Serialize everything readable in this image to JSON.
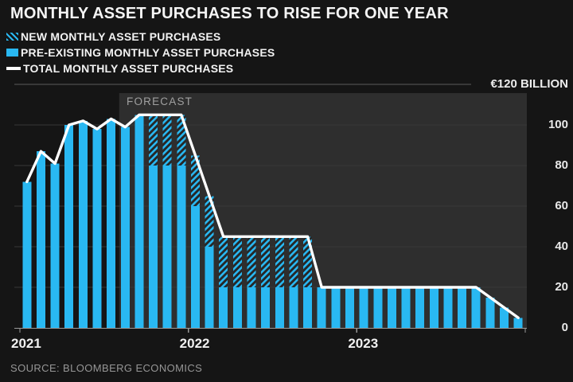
{
  "header": {
    "title": "MONTHLY ASSET PURCHASES TO RISE FOR ONE YEAR",
    "unit_label": "€120 BILLION"
  },
  "legend": [
    {
      "label": "NEW MONTHLY ASSET PURCHASES",
      "swatch": "hatched-cyan"
    },
    {
      "label": "PRE-EXISTING MONTHLY ASSET PURCHASES",
      "swatch": "solid-cyan"
    },
    {
      "label": "TOTAL MONTHLY ASSET PURCHASES",
      "swatch": "white-line"
    }
  ],
  "forecast_label": "FORECAST",
  "source": "SOURCE: BLOOMBERG ECONOMICS",
  "colors": {
    "bar_cyan": "#29b8f2",
    "hatch_background": "#262626",
    "total_line_white": "#ffffff",
    "forecast_region": "#2e2e2e",
    "gridline": "#383838",
    "top_gridline": "#5a5a5a",
    "axis": "#999999",
    "page_background": "#151515"
  },
  "chart_data": {
    "type": "bar",
    "stacked": true,
    "unit": "EUR billion per month",
    "title": "MONTHLY ASSET PURCHASES TO RISE FOR ONE YEAR",
    "ylim": [
      0,
      120
    ],
    "y_top_label": "€120 BILLION",
    "y_ticks": [
      100,
      80,
      60,
      40,
      20,
      0
    ],
    "x_tick_labels": [
      "2021",
      "2022",
      "2023"
    ],
    "grid": true,
    "legend_position": "top-left",
    "forecast_start": "2021-08",
    "forecast_start_index": 7,
    "x": [
      "2021-01",
      "2021-02",
      "2021-03",
      "2021-04",
      "2021-05",
      "2021-06",
      "2021-07",
      "2021-08",
      "2021-09",
      "2021-10",
      "2021-11",
      "2021-12",
      "2022-01",
      "2022-02",
      "2022-03",
      "2022-04",
      "2022-05",
      "2022-06",
      "2022-07",
      "2022-08",
      "2022-09",
      "2022-10",
      "2022-11",
      "2022-12",
      "2023-01",
      "2023-02",
      "2023-03",
      "2023-04",
      "2023-05",
      "2023-06",
      "2023-07",
      "2023-08",
      "2023-09",
      "2023-10",
      "2023-11",
      "2023-12"
    ],
    "series": [
      {
        "name": "PRE-EXISTING MONTHLY ASSET PURCHASES",
        "type": "bar",
        "values": [
          72,
          87,
          81,
          100,
          102,
          98,
          103,
          99,
          105,
          80,
          80,
          80,
          60,
          40,
          20,
          20,
          20,
          20,
          20,
          20,
          20,
          20,
          20,
          20,
          20,
          20,
          20,
          20,
          20,
          20,
          20,
          20,
          20,
          15,
          10,
          5
        ]
      },
      {
        "name": "NEW MONTHLY ASSET PURCHASES",
        "type": "bar",
        "values": [
          0,
          0,
          0,
          0,
          0,
          0,
          0,
          0,
          0,
          25,
          25,
          25,
          25,
          25,
          25,
          25,
          25,
          25,
          25,
          25,
          25,
          0,
          0,
          0,
          0,
          0,
          0,
          0,
          0,
          0,
          0,
          0,
          0,
          0,
          0,
          0
        ]
      },
      {
        "name": "TOTAL MONTHLY ASSET PURCHASES",
        "type": "line",
        "values": [
          72,
          87,
          81,
          100,
          102,
          98,
          103,
          99,
          105,
          105,
          105,
          105,
          85,
          65,
          45,
          45,
          45,
          45,
          45,
          45,
          45,
          20,
          20,
          20,
          20,
          20,
          20,
          20,
          20,
          20,
          20,
          20,
          20,
          15,
          10,
          5
        ]
      }
    ]
  }
}
